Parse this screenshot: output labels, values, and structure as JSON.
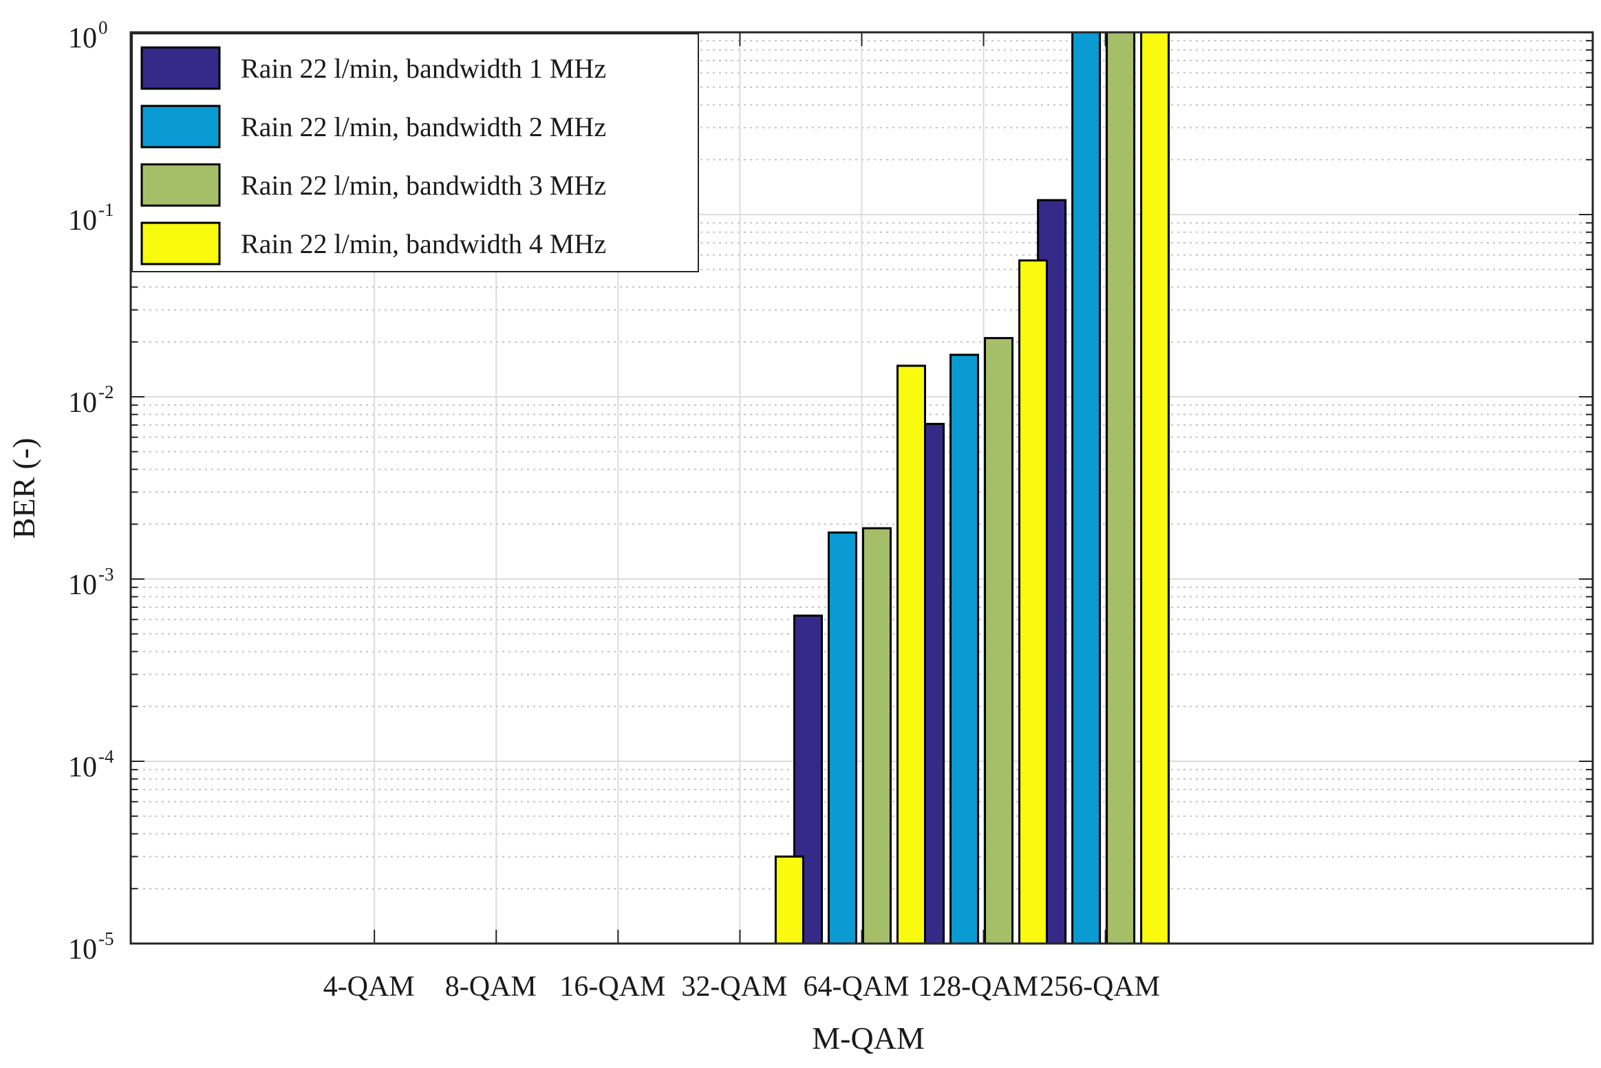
{
  "chart_data": {
    "type": "bar",
    "xlabel": "M-QAM",
    "ylabel": "BER (-)",
    "yscale": "log",
    "ylim": [
      1e-05,
      1
    ],
    "grid": true,
    "legend_position": "top-left",
    "categories": [
      "4-QAM",
      "8-QAM",
      "16-QAM",
      "32-QAM",
      "64-QAM",
      "128-QAM",
      "256-QAM"
    ],
    "y_ticks": [
      {
        "base": "10",
        "exp": "-5",
        "value": 1e-05
      },
      {
        "base": "10",
        "exp": "-4",
        "value": 0.0001
      },
      {
        "base": "10",
        "exp": "-3",
        "value": 0.001
      },
      {
        "base": "10",
        "exp": "-2",
        "value": 0.01
      },
      {
        "base": "10",
        "exp": "-1",
        "value": 0.1
      },
      {
        "base": "10",
        "exp": "0",
        "value": 1
      }
    ],
    "series": [
      {
        "name": "Rain 22 l/min, bandwidth 1 MHz",
        "color": "#352a87",
        "values": [
          null,
          null,
          null,
          null,
          0.00063,
          0.0071,
          0.12
        ]
      },
      {
        "name": "Rain 22 l/min, bandwidth 2 MHz",
        "color": "#0a9bd2",
        "values": [
          null,
          null,
          null,
          null,
          0.0018,
          0.017,
          1
        ]
      },
      {
        "name": "Rain 22 l/min, bandwidth 3 MHz",
        "color": "#a5bf69",
        "values": [
          null,
          null,
          null,
          null,
          0.0019,
          0.021,
          1
        ]
      },
      {
        "name": "Rain 22 l/min, bandwidth 4 MHz",
        "color": "#f9fa0e",
        "values": [
          null,
          null,
          null,
          3e-05,
          0.0148,
          0.056,
          1
        ]
      }
    ]
  }
}
